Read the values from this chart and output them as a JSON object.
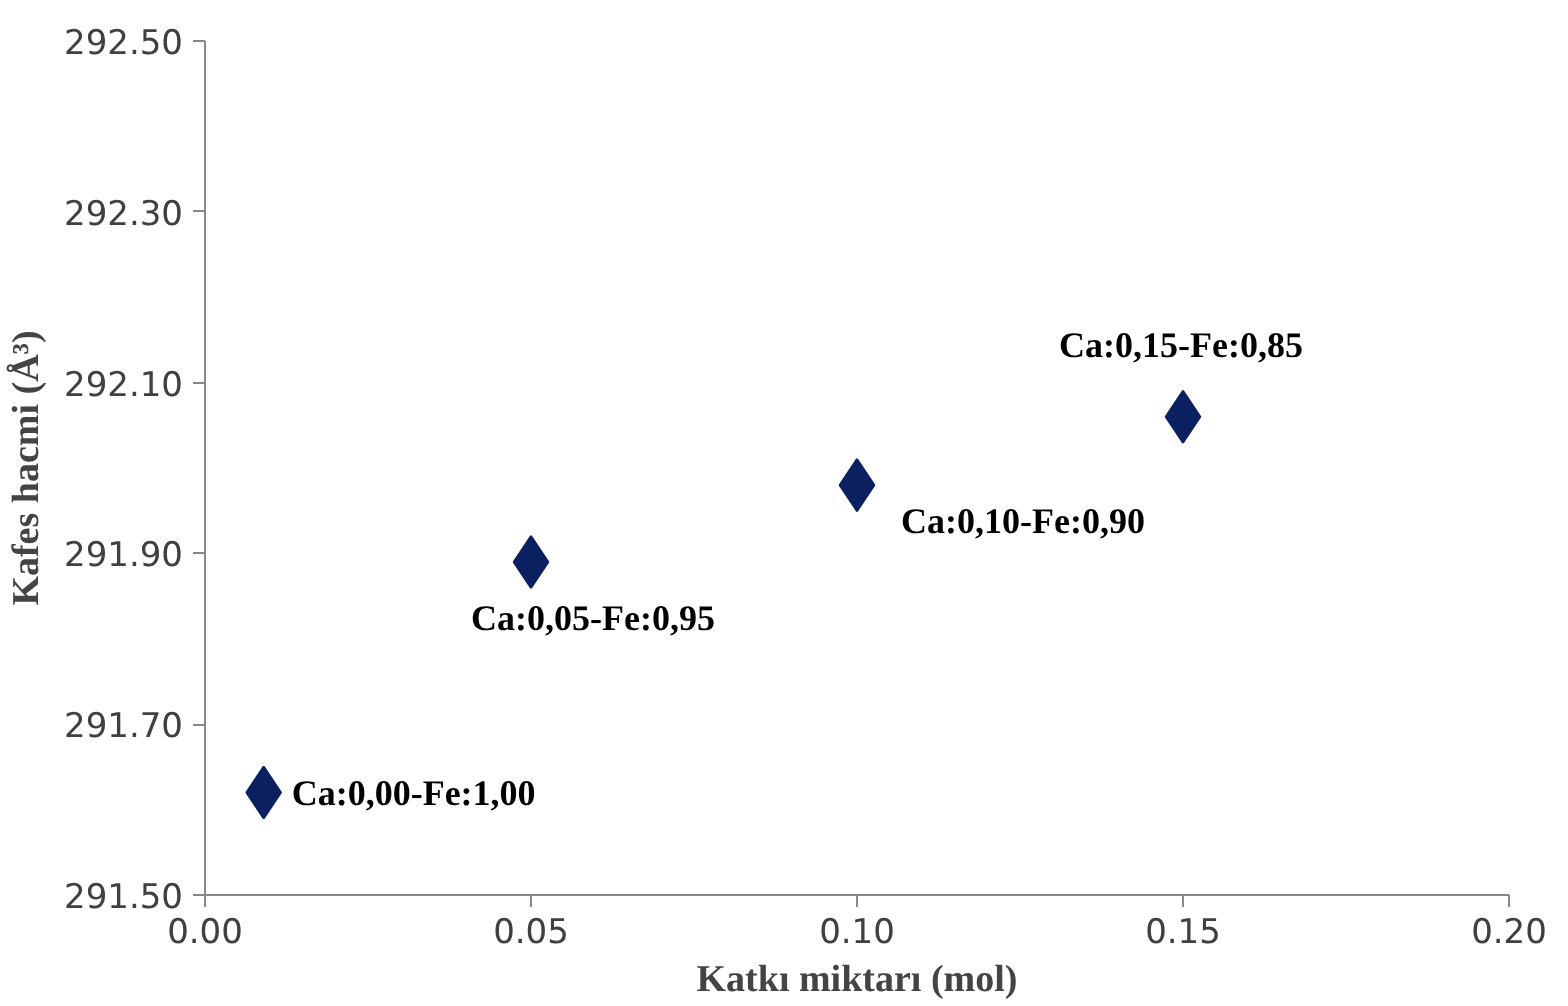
{
  "chart_data": {
    "type": "scatter",
    "xlabel": "Katkı miktarı (mol)",
    "ylabel": "Kafes hacmi (Å³)",
    "x": [
      0.009,
      0.05,
      0.1,
      0.15
    ],
    "series": [
      {
        "color": "#0b2060",
        "values": [
          291.62,
          291.89,
          291.98,
          292.06
        ]
      }
    ],
    "marker": "diamond",
    "xlim": [
      0,
      0.2
    ],
    "xticks": [
      {
        "value": 0,
        "label": "0.00"
      },
      {
        "value": 0.05,
        "label": "0.05"
      },
      {
        "value": 0.1,
        "label": "0.10"
      },
      {
        "value": 0.15,
        "label": "0.15"
      },
      {
        "value": 0.2,
        "label": "0.20"
      }
    ],
    "ylim": [
      291.5,
      292.5
    ],
    "yticks": [
      {
        "value": 291.5,
        "label": "291.50"
      },
      {
        "value": 291.7,
        "label": "291.70"
      },
      {
        "value": 291.9,
        "label": "291.90"
      },
      {
        "value": 292.1,
        "label": "292.10"
      },
      {
        "value": 292.3,
        "label": "292.30"
      },
      {
        "value": 292.5,
        "label": "292.50"
      }
    ],
    "annotations": [
      {
        "text": "Ca:0,00-Fe:1,00",
        "x": 0.009,
        "y": 291.62
      },
      {
        "text": "Ca:0,05-Fe:0,95",
        "x": 0.05,
        "y": 291.89
      },
      {
        "text": "Ca:0,10-Fe:0,90",
        "x": 0.1,
        "y": 291.98
      },
      {
        "text": "Ca:0,15-Fe:0,85",
        "x": 0.15,
        "y": 292.06
      }
    ],
    "grid": false
  }
}
